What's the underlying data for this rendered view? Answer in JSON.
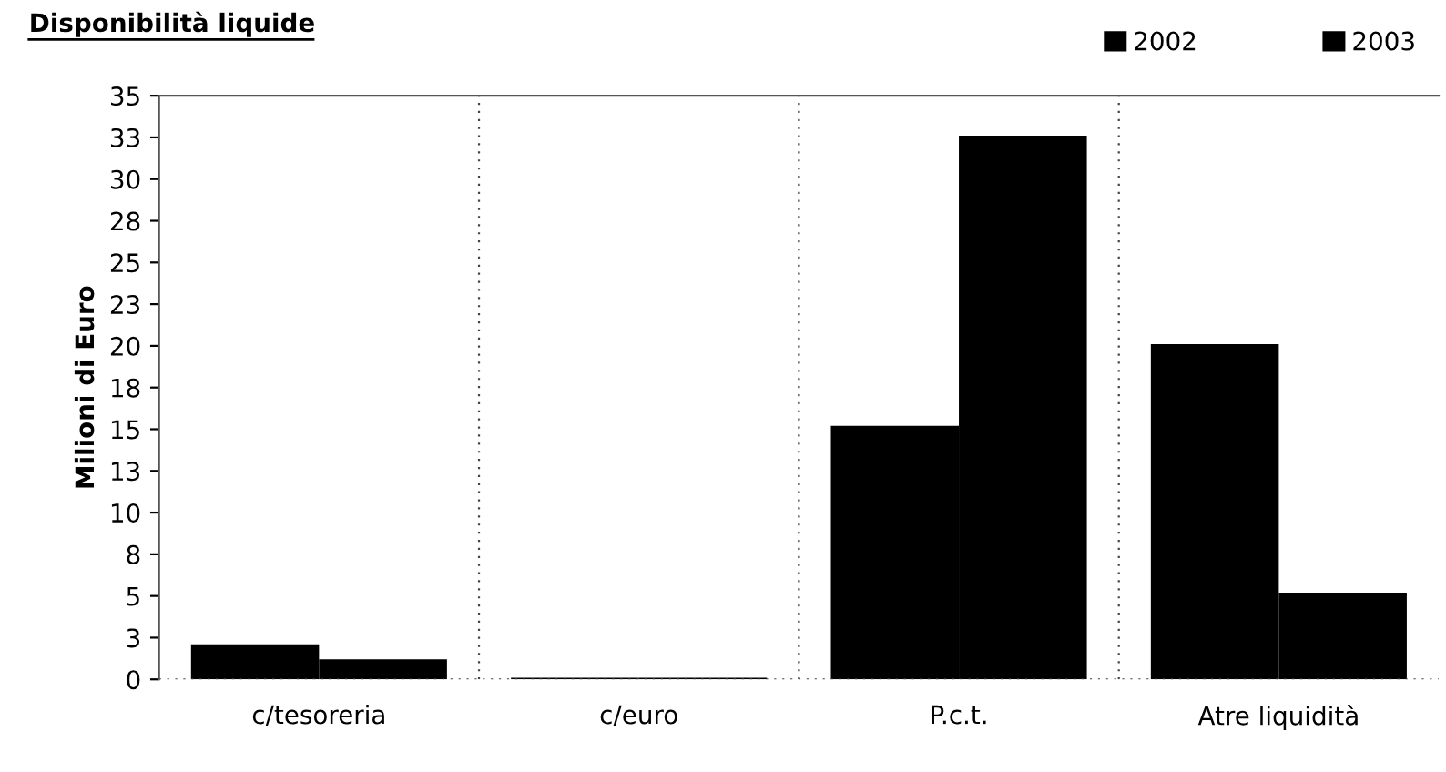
{
  "chart_data": {
    "type": "bar",
    "title": "Disponibilità liquide",
    "ylabel": "Milioni di Euro",
    "categories": [
      "c/tesoreria",
      "c/euro",
      "P.c.t.",
      "Atre liquidità"
    ],
    "series": [
      {
        "name": "2002",
        "color": "#000000",
        "values": [
          2.1,
          0.1,
          15.2,
          20.1
        ]
      },
      {
        "name": "2003",
        "color": "#000000",
        "values": [
          1.2,
          0.1,
          32.6,
          5.2
        ]
      }
    ],
    "ylim": [
      0,
      35
    ],
    "yticks": [
      0,
      {
        "value": 2.5,
        "label": "3"
      },
      5,
      {
        "value": 7.5,
        "label": "8"
      },
      10,
      {
        "value": 12.5,
        "label": "13"
      },
      15,
      {
        "value": 17.5,
        "label": "18"
      },
      20,
      {
        "value": 22.5,
        "label": "23"
      },
      25,
      {
        "value": 27.5,
        "label": "28"
      },
      30,
      {
        "value": 32.5,
        "label": "33"
      },
      35
    ],
    "grid": "x",
    "legend": "top right"
  }
}
